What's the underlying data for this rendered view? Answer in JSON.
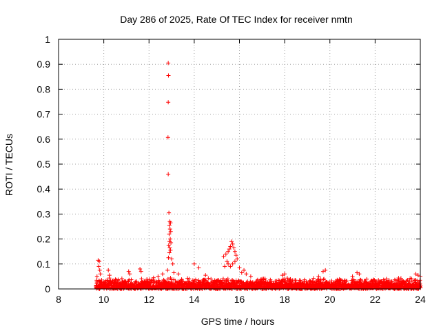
{
  "chart_data": {
    "type": "scatter",
    "title": "Day 286 of 2025, Rate Of TEC Index for receiver nmtn",
    "xlabel": "GPS time / hours",
    "ylabel": "ROTI / TECUs",
    "xlim": [
      8,
      24
    ],
    "ylim": [
      0,
      1
    ],
    "x_ticks": [
      8,
      10,
      12,
      14,
      16,
      18,
      20,
      22,
      24
    ],
    "x_tick_labels": [
      "8",
      "10",
      "12",
      "14",
      "16",
      "18",
      "20",
      "22",
      "24"
    ],
    "y_ticks": [
      0,
      0.1,
      0.2,
      0.3,
      0.4,
      0.5,
      0.6,
      0.7,
      0.8,
      0.9,
      1
    ],
    "y_tick_labels": [
      "0",
      "0.1",
      "0.2",
      "0.3",
      "0.4",
      "0.5",
      "0.6",
      "0.7",
      "0.8",
      "0.9",
      "1"
    ],
    "grid": true,
    "marker": "+",
    "color": "#ff0000",
    "series": [
      {
        "name": "ROTI",
        "points": [
          [
            12.85,
            0.905
          ],
          [
            12.86,
            0.855
          ],
          [
            12.85,
            0.748
          ],
          [
            12.84,
            0.607
          ],
          [
            12.85,
            0.46
          ],
          [
            12.88,
            0.305
          ],
          [
            12.92,
            0.27
          ],
          [
            12.95,
            0.265
          ],
          [
            12.9,
            0.255
          ],
          [
            12.93,
            0.24
          ],
          [
            12.96,
            0.23
          ],
          [
            12.89,
            0.22
          ],
          [
            12.94,
            0.2
          ],
          [
            12.91,
            0.19
          ],
          [
            12.97,
            0.185
          ],
          [
            12.87,
            0.175
          ],
          [
            12.92,
            0.165
          ],
          [
            12.95,
            0.155
          ],
          [
            12.9,
            0.145
          ],
          [
            12.86,
            0.125
          ],
          [
            13.0,
            0.12
          ],
          [
            13.05,
            0.1
          ],
          [
            12.82,
            0.075
          ],
          [
            13.1,
            0.065
          ],
          [
            13.3,
            0.06
          ],
          [
            9.7,
            0.05
          ],
          [
            9.75,
            0.115
          ],
          [
            9.8,
            0.11
          ],
          [
            9.78,
            0.09
          ],
          [
            9.82,
            0.075
          ],
          [
            9.85,
            0.06
          ],
          [
            10.2,
            0.075
          ],
          [
            10.25,
            0.055
          ],
          [
            11.1,
            0.07
          ],
          [
            11.15,
            0.06
          ],
          [
            11.6,
            0.08
          ],
          [
            11.65,
            0.07
          ],
          [
            12.2,
            0.045
          ],
          [
            12.4,
            0.05
          ],
          [
            12.6,
            0.06
          ],
          [
            14.0,
            0.1
          ],
          [
            14.2,
            0.085
          ],
          [
            14.5,
            0.055
          ],
          [
            15.3,
            0.13
          ],
          [
            15.4,
            0.14
          ],
          [
            15.5,
            0.15
          ],
          [
            15.55,
            0.16
          ],
          [
            15.6,
            0.17
          ],
          [
            15.65,
            0.19
          ],
          [
            15.7,
            0.18
          ],
          [
            15.75,
            0.165
          ],
          [
            15.8,
            0.15
          ],
          [
            15.85,
            0.135
          ],
          [
            15.9,
            0.12
          ],
          [
            15.45,
            0.11
          ],
          [
            15.5,
            0.1
          ],
          [
            15.6,
            0.09
          ],
          [
            15.7,
            0.1
          ],
          [
            15.8,
            0.11
          ],
          [
            15.35,
            0.09
          ],
          [
            16.0,
            0.085
          ],
          [
            16.1,
            0.065
          ],
          [
            16.2,
            0.075
          ],
          [
            16.3,
            0.06
          ],
          [
            16.5,
            0.05
          ],
          [
            17.0,
            0.04
          ],
          [
            17.9,
            0.055
          ],
          [
            18.0,
            0.06
          ],
          [
            19.5,
            0.05
          ],
          [
            19.7,
            0.07
          ],
          [
            19.8,
            0.075
          ],
          [
            21.2,
            0.065
          ],
          [
            21.3,
            0.06
          ],
          [
            21.0,
            0.05
          ],
          [
            23.8,
            0.06
          ],
          [
            23.9,
            0.055
          ],
          [
            24.0,
            0.05
          ],
          [
            22.5,
            0.04
          ]
        ]
      }
    ],
    "noise_floor_range": [
      9.65,
      24.0
    ],
    "noise_floor_max": 0.045
  }
}
